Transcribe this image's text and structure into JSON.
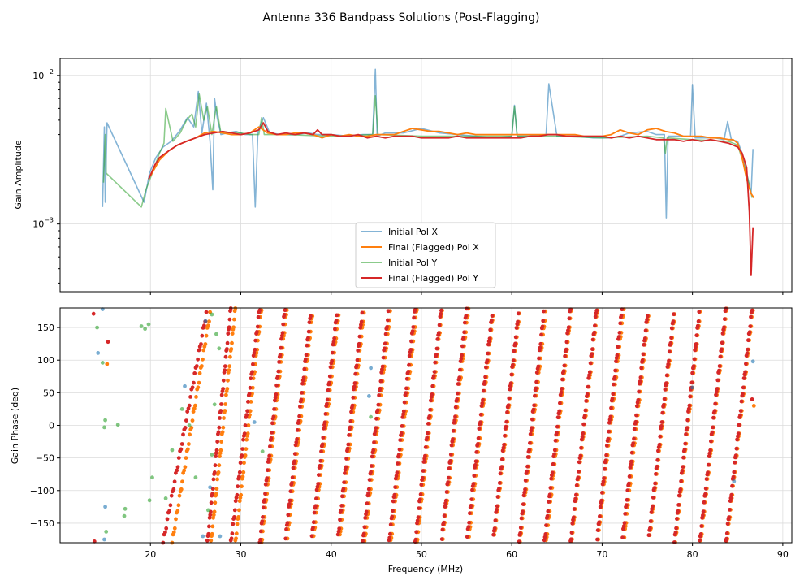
{
  "figure": {
    "title": "Antenna 336 Bandpass Solutions (Post-Flagging)"
  },
  "colors": {
    "initial_x": "#1f77b4",
    "final_x": "#ff7f0e",
    "initial_y": "#2ca02c",
    "final_y": "#d62728"
  },
  "chart_data": [
    {
      "type": "line",
      "title": "",
      "xlabel": "",
      "ylabel": "Gain Amplitude",
      "xlim": [
        10,
        91
      ],
      "ylim": [
        0.00035,
        0.013
      ],
      "yscale": "log",
      "yticks": [
        {
          "value": 0.01,
          "base": "10",
          "exp": "−2"
        },
        {
          "value": 0.001,
          "base": "10",
          "exp": "−3"
        }
      ],
      "grid": true,
      "legend_position": "lower-center",
      "series": [
        {
          "name": "Initial Pol X",
          "key": "initial_x",
          "x": [
            14.7,
            14.9,
            15.0,
            15.2,
            19.3,
            19.9,
            20.6,
            21.4,
            22.3,
            23.2,
            24.1,
            24.8,
            25.3,
            25.7,
            26.2,
            26.6,
            26.9,
            27.1,
            27.4,
            27.8,
            28.5,
            29.5,
            30.5,
            31.3,
            31.6,
            31.9,
            32.5,
            33.2,
            34.5,
            36.0,
            37.5,
            38.5,
            40.0,
            42.0,
            43.5,
            44.6,
            44.9,
            45.1,
            46.0,
            48.0,
            50.0,
            52.0,
            54.0,
            56.0,
            58.0,
            60.0,
            60.3,
            60.6,
            62.0,
            63.8,
            64.1,
            65.0,
            67.0,
            69.0,
            71.0,
            72.0,
            73.0,
            75.0,
            76.0,
            76.9,
            77.1,
            77.3,
            78.5,
            79.8,
            80.0,
            80.3,
            81.5,
            82.5,
            83.5,
            83.9,
            84.3,
            85.0,
            85.5,
            86.0,
            86.5,
            86.7
          ],
          "values": [
            0.0013,
            0.0045,
            0.0014,
            0.0048,
            0.0014,
            0.0022,
            0.0028,
            0.0033,
            0.0036,
            0.0042,
            0.0052,
            0.0045,
            0.0078,
            0.0041,
            0.0065,
            0.0036,
            0.0017,
            0.007,
            0.0052,
            0.004,
            0.0041,
            0.0042,
            0.004,
            0.004,
            0.0013,
            0.0042,
            0.0052,
            0.0041,
            0.004,
            0.004,
            0.0041,
            0.004,
            0.004,
            0.0039,
            0.004,
            0.004,
            0.011,
            0.0039,
            0.0041,
            0.0041,
            0.0044,
            0.0041,
            0.004,
            0.0039,
            0.0038,
            0.0039,
            0.0063,
            0.0039,
            0.0039,
            0.004,
            0.0088,
            0.0039,
            0.0039,
            0.0038,
            0.0038,
            0.0039,
            0.0041,
            0.0042,
            0.004,
            0.004,
            0.0011,
            0.0039,
            0.0039,
            0.0039,
            0.0087,
            0.0038,
            0.0038,
            0.0038,
            0.0037,
            0.0049,
            0.0037,
            0.0036,
            0.003,
            0.0022,
            0.0016,
            0.0032
          ]
        },
        {
          "name": "Final (Flagged) Pol X",
          "key": "final_x",
          "x": [
            20.0,
            21.0,
            22.0,
            23.0,
            24.0,
            25.0,
            26.0,
            27.0,
            28.0,
            29.0,
            30.0,
            31.0,
            32.0,
            33.0,
            34.0,
            35.0,
            36.0,
            37.0,
            38.0,
            39.0,
            40.0,
            41.0,
            42.0,
            43.0,
            44.0,
            45.0,
            46.0,
            47.0,
            48.0,
            49.0,
            50.0,
            51.0,
            52.0,
            53.0,
            54.0,
            55.0,
            56.0,
            57.0,
            58.0,
            59.0,
            60.0,
            61.0,
            62.0,
            63.0,
            64.0,
            65.0,
            66.0,
            67.0,
            68.0,
            69.0,
            70.0,
            71.0,
            72.0,
            73.0,
            74.0,
            75.0,
            76.0,
            77.0,
            78.0,
            79.0,
            80.0,
            81.0,
            82.0,
            83.0,
            84.0,
            84.5,
            85.0,
            85.5,
            86.0,
            86.5,
            86.8
          ],
          "values": [
            0.0021,
            0.0027,
            0.0031,
            0.0034,
            0.0036,
            0.0038,
            0.0041,
            0.0042,
            0.0041,
            0.004,
            0.004,
            0.0041,
            0.0045,
            0.0041,
            0.004,
            0.004,
            0.0041,
            0.0041,
            0.004,
            0.0038,
            0.004,
            0.0039,
            0.004,
            0.0039,
            0.0039,
            0.004,
            0.004,
            0.004,
            0.0042,
            0.0044,
            0.0043,
            0.0042,
            0.0042,
            0.0041,
            0.004,
            0.0041,
            0.004,
            0.004,
            0.004,
            0.004,
            0.004,
            0.004,
            0.004,
            0.004,
            0.004,
            0.004,
            0.004,
            0.004,
            0.0039,
            0.0039,
            0.0039,
            0.004,
            0.0043,
            0.0041,
            0.004,
            0.0043,
            0.0044,
            0.0042,
            0.0041,
            0.0039,
            0.0039,
            0.0039,
            0.0038,
            0.0038,
            0.0037,
            0.0037,
            0.0035,
            0.0028,
            0.002,
            0.0016,
            0.0015
          ]
        },
        {
          "name": "Initial Pol Y",
          "key": "initial_y",
          "x": [
            14.8,
            15.0,
            15.1,
            19.0,
            19.5,
            20.2,
            21.0,
            21.5,
            21.7,
            22.5,
            23.3,
            24.0,
            24.6,
            25.0,
            25.4,
            25.9,
            26.3,
            26.8,
            27.3,
            27.8,
            28.5,
            30.0,
            31.0,
            32.0,
            32.3,
            32.6,
            33.5,
            35.0,
            40.0,
            44.6,
            44.9,
            45.2,
            50.0,
            55.0,
            60.0,
            60.3,
            60.6,
            65.0,
            70.0,
            75.0,
            76.8,
            77.0,
            77.2,
            80.0,
            84.0,
            85.0,
            86.0,
            86.6
          ],
          "values": [
            0.0019,
            0.004,
            0.0022,
            0.0013,
            0.0017,
            0.0022,
            0.003,
            0.0035,
            0.006,
            0.0036,
            0.0041,
            0.005,
            0.0055,
            0.0045,
            0.0075,
            0.005,
            0.0062,
            0.004,
            0.0062,
            0.0041,
            0.0041,
            0.0041,
            0.004,
            0.004,
            0.0052,
            0.004,
            0.004,
            0.004,
            0.0039,
            0.004,
            0.0073,
            0.004,
            0.0039,
            0.0039,
            0.0039,
            0.0062,
            0.0039,
            0.0039,
            0.0038,
            0.0039,
            0.0038,
            0.003,
            0.0038,
            0.0037,
            0.0036,
            0.0034,
            0.0022,
            0.0015
          ]
        },
        {
          "name": "Final (Flagged) Pol Y",
          "key": "final_y",
          "x": [
            19.8,
            20.5,
            21.0,
            22.0,
            23.0,
            24.0,
            25.0,
            26.0,
            27.0,
            28.0,
            29.0,
            30.0,
            31.0,
            32.0,
            32.5,
            33.0,
            34.0,
            35.0,
            36.0,
            37.0,
            38.0,
            38.5,
            39.0,
            40.0,
            41.0,
            42.0,
            43.0,
            44.0,
            45.0,
            46.0,
            47.0,
            48.0,
            49.0,
            50.0,
            51.0,
            52.0,
            53.0,
            54.0,
            55.0,
            56.0,
            57.0,
            58.0,
            59.0,
            60.0,
            61.0,
            62.0,
            63.0,
            64.0,
            65.0,
            66.0,
            67.0,
            68.0,
            69.0,
            70.0,
            71.0,
            72.0,
            73.0,
            74.0,
            75.0,
            76.0,
            77.0,
            78.0,
            79.0,
            80.0,
            81.0,
            82.0,
            83.0,
            84.0,
            85.0,
            85.5,
            86.0,
            86.3,
            86.5,
            86.7
          ],
          "values": [
            0.002,
            0.0025,
            0.0028,
            0.0031,
            0.0034,
            0.0036,
            0.0038,
            0.004,
            0.0041,
            0.0042,
            0.0041,
            0.004,
            0.0041,
            0.0043,
            0.0048,
            0.0042,
            0.004,
            0.0041,
            0.004,
            0.0041,
            0.004,
            0.0043,
            0.004,
            0.004,
            0.0039,
            0.0039,
            0.004,
            0.0038,
            0.0039,
            0.0038,
            0.0039,
            0.0039,
            0.0039,
            0.0038,
            0.0038,
            0.0038,
            0.0038,
            0.0039,
            0.0038,
            0.0038,
            0.0038,
            0.0038,
            0.0038,
            0.0038,
            0.0038,
            0.0039,
            0.0039,
            0.004,
            0.004,
            0.0039,
            0.0039,
            0.0039,
            0.0039,
            0.0039,
            0.0038,
            0.0039,
            0.0038,
            0.0039,
            0.0038,
            0.0037,
            0.0037,
            0.0037,
            0.0036,
            0.0037,
            0.0036,
            0.0037,
            0.0036,
            0.0035,
            0.0033,
            0.003,
            0.0024,
            0.0012,
            0.00045,
            0.00095
          ]
        }
      ]
    },
    {
      "type": "scatter",
      "title": "",
      "xlabel": "Frequency (MHz)",
      "ylabel": "Gain Phase (deg)",
      "xlim": [
        10,
        91
      ],
      "ylim": [
        -180,
        180
      ],
      "yticks": [
        150,
        100,
        50,
        0,
        -50,
        -100,
        -150
      ],
      "xticks": [
        20,
        30,
        40,
        50,
        60,
        70,
        80,
        90
      ],
      "grid": true,
      "phase_wrap": {
        "description": "phase ramps from -180 to 180 deg and wraps",
        "pol_x_wrap_frequencies_mhz": [
          22.4,
          26.7,
          29.4,
          32.3,
          35.1,
          38.0,
          40.9,
          43.7,
          46.6,
          49.5,
          52.3,
          55.2,
          58.0,
          60.9,
          63.8,
          66.6,
          69.5,
          72.4,
          75.2,
          78.1,
          80.9,
          83.8,
          86.7
        ],
        "pol_y_wrap_frequencies_mhz": [
          21.4,
          26.3,
          28.9,
          32.1,
          34.9,
          37.8,
          40.7,
          43.5,
          46.4,
          49.3,
          52.2,
          55.0,
          57.9,
          60.8,
          63.6,
          66.5,
          69.4,
          72.2,
          75.1,
          78.0,
          80.8,
          83.7,
          86.6
        ],
        "pol_x_end_frequency_mhz": 86.7,
        "pol_y_end_frequency_mhz": 86.8
      },
      "scatter_outliers": [
        {
          "key": "initial_x",
          "x": 14.7,
          "y": 178
        },
        {
          "key": "initial_x",
          "x": 14.2,
          "y": 111
        },
        {
          "key": "initial_x",
          "x": 15.0,
          "y": -125
        },
        {
          "key": "initial_x",
          "x": 14.9,
          "y": -175
        },
        {
          "key": "initial_x",
          "x": 44.4,
          "y": 88
        },
        {
          "key": "initial_x",
          "x": 44.2,
          "y": 45
        },
        {
          "key": "initial_x",
          "x": 31.5,
          "y": 5
        },
        {
          "key": "initial_x",
          "x": 80.0,
          "y": 58
        },
        {
          "key": "initial_x",
          "x": 84.6,
          "y": -86
        },
        {
          "key": "initial_x",
          "x": 86.7,
          "y": 98
        },
        {
          "key": "initial_x",
          "x": 25.8,
          "y": -170
        },
        {
          "key": "initial_x",
          "x": 26.6,
          "y": -95
        },
        {
          "key": "initial_x",
          "x": 26.1,
          "y": 160
        },
        {
          "key": "initial_x",
          "x": 23.8,
          "y": 60
        },
        {
          "key": "initial_x",
          "x": 27.7,
          "y": -170
        },
        {
          "key": "initial_y",
          "x": 14.1,
          "y": 150
        },
        {
          "key": "initial_y",
          "x": 14.7,
          "y": 96
        },
        {
          "key": "initial_y",
          "x": 15.0,
          "y": 8
        },
        {
          "key": "initial_y",
          "x": 14.9,
          "y": -3
        },
        {
          "key": "initial_y",
          "x": 16.4,
          "y": 1
        },
        {
          "key": "initial_y",
          "x": 15.1,
          "y": -163
        },
        {
          "key": "initial_y",
          "x": 17.2,
          "y": -128
        },
        {
          "key": "initial_y",
          "x": 17.1,
          "y": -139
        },
        {
          "key": "initial_y",
          "x": 19.0,
          "y": 152
        },
        {
          "key": "initial_y",
          "x": 19.4,
          "y": 148
        },
        {
          "key": "initial_y",
          "x": 19.8,
          "y": 155
        },
        {
          "key": "initial_y",
          "x": 20.2,
          "y": -80
        },
        {
          "key": "initial_y",
          "x": 19.9,
          "y": -115
        },
        {
          "key": "initial_y",
          "x": 21.7,
          "y": -112
        },
        {
          "key": "initial_y",
          "x": 22.4,
          "y": -38
        },
        {
          "key": "initial_y",
          "x": 24.3,
          "y": 0
        },
        {
          "key": "initial_y",
          "x": 25.0,
          "y": -80
        },
        {
          "key": "initial_y",
          "x": 26.8,
          "y": 170
        },
        {
          "key": "initial_y",
          "x": 27.3,
          "y": 140
        },
        {
          "key": "initial_y",
          "x": 27.6,
          "y": 118
        },
        {
          "key": "initial_y",
          "x": 26.8,
          "y": -45
        },
        {
          "key": "initial_y",
          "x": 26.4,
          "y": -130
        },
        {
          "key": "initial_y",
          "x": 32.4,
          "y": -40
        },
        {
          "key": "initial_y",
          "x": 44.4,
          "y": 13
        },
        {
          "key": "initial_y",
          "x": 27.1,
          "y": 32
        },
        {
          "key": "initial_y",
          "x": 23.5,
          "y": 25
        },
        {
          "key": "final_y",
          "x": 13.7,
          "y": 171
        },
        {
          "key": "final_y",
          "x": 15.3,
          "y": 128
        },
        {
          "key": "final_y",
          "x": 86.6,
          "y": 40
        },
        {
          "key": "final_y",
          "x": 13.8,
          "y": -178
        },
        {
          "key": "final_x",
          "x": 15.2,
          "y": 94
        },
        {
          "key": "final_x",
          "x": 86.8,
          "y": 30
        }
      ]
    }
  ],
  "legend": {
    "entries": [
      {
        "key": "initial_x",
        "label": "Initial Pol X"
      },
      {
        "key": "final_x",
        "label": "Final (Flagged) Pol X"
      },
      {
        "key": "initial_y",
        "label": "Initial Pol Y"
      },
      {
        "key": "final_y",
        "label": "Final (Flagged) Pol Y"
      }
    ]
  }
}
